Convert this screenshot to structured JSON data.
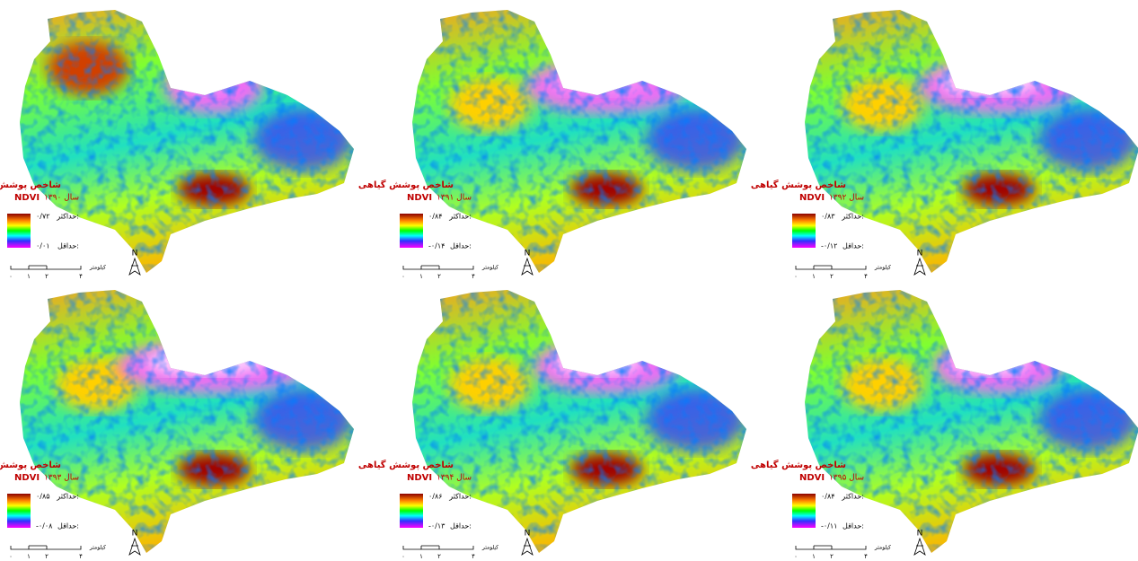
{
  "panels": [
    {
      "title": "شاخص پوشش گیاهی",
      "ndvi": "NDVI",
      "year": "سال ۱۳۹۰",
      "max_label": "حداکثر:",
      "max": "۰/۷۲",
      "min_label": "حداقل:",
      "min": "۰/۰۱",
      "scale_ticks": [
        "۰",
        "۱",
        "۲",
        "۴"
      ],
      "scale_unit": "کیلومتر",
      "north": "N"
    },
    {
      "title": "شاخص پوشش گیاهی",
      "ndvi": "NDVI",
      "year": "سال ۱۳۹۱",
      "max_label": "حداکثر:",
      "max": "۰/۸۴",
      "min_label": "حداقل:",
      "min": "-۰/۱۴",
      "scale_ticks": [
        "۰",
        "۱",
        "۲",
        "۴"
      ],
      "scale_unit": "کیلومتر",
      "north": "N"
    },
    {
      "title": "شاخص پوشش گیاهی",
      "ndvi": "NDVI",
      "year": "سال ۱۳۹۲",
      "max_label": "حداکثر:",
      "max": "۰/۸۳",
      "min_label": "حداقل:",
      "min": "-۰/۱۲",
      "scale_ticks": [
        "۰",
        "۱",
        "۲",
        "۴"
      ],
      "scale_unit": "کیلومتر",
      "north": "N"
    },
    {
      "title": "شاخص پوشش گیاهی",
      "ndvi": "NDVI",
      "year": "سال ۱۳۹۳",
      "max_label": "حداکثر:",
      "max": "۰/۸۵",
      "min_label": "حداقل:",
      "min": "-۰/۰۸",
      "scale_ticks": [
        "۰",
        "۱",
        "۲",
        "۴"
      ],
      "scale_unit": "کیلومتر",
      "north": "N"
    },
    {
      "title": "شاخص پوشش گیاهی",
      "ndvi": "NDVI",
      "year": "سال ۱۳۹۴",
      "max_label": "حداکثر:",
      "max": "۰/۸۶",
      "min_label": "حداقل:",
      "min": "-۰/۱۳",
      "scale_ticks": [
        "۰",
        "۱",
        "۲",
        "۴"
      ],
      "scale_unit": "کیلومتر",
      "north": "N"
    },
    {
      "title": "شاخص پوشش گیاهی",
      "ndvi": "NDVI",
      "year": "سال ۱۳۹۵",
      "max_label": "حداکثر:",
      "max": "۰/۸۴",
      "min_label": "حداقل:",
      "min": "-۰/۱۱",
      "scale_ticks": [
        "۰",
        "۱",
        "۲",
        "۴"
      ],
      "scale_unit": "کیلومتر",
      "north": "N"
    }
  ]
}
